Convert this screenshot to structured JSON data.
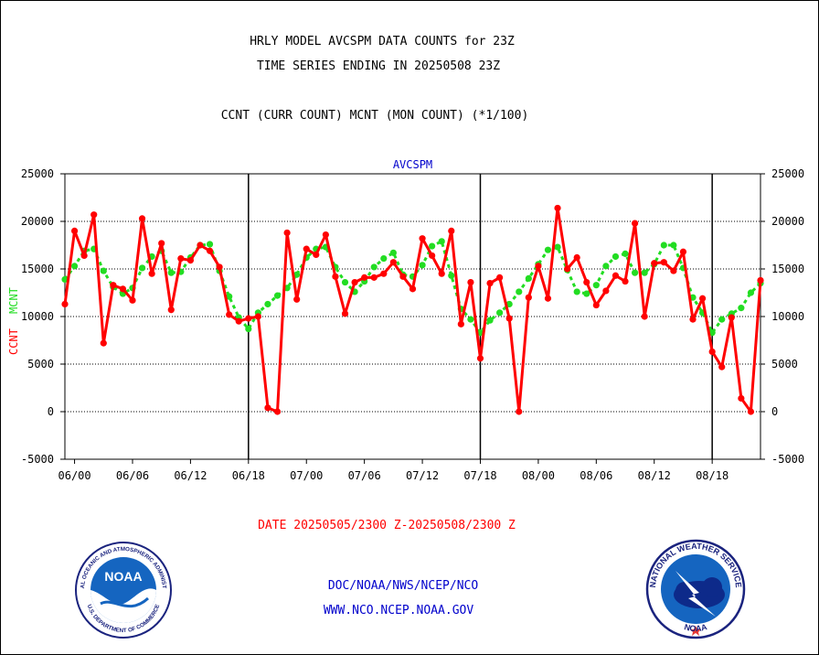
{
  "header": {
    "title_line1": "HRLY MODEL AVCSPM DATA COUNTS for 23Z",
    "title_line2": "TIME SERIES ENDING IN 20250508 23Z",
    "subtitle": "CCNT (CURR COUNT) MCNT (MON COUNT) (*1/100)"
  },
  "chart_data": {
    "type": "line",
    "title": "AVCSPM",
    "ylabel_curr": "CCNT",
    "ylabel_mon": "MCNT",
    "xlabel": "DATE 20250505/2300 Z-20250508/2300 Z",
    "ylim": [
      -5000,
      25000
    ],
    "yticks": [
      25000,
      20000,
      15000,
      10000,
      5000,
      0,
      -5000
    ],
    "x_unit": "hours since 06/00",
    "xlim": [
      -1,
      71
    ],
    "xticks": [
      {
        "x": 0,
        "label": "06/00"
      },
      {
        "x": 6,
        "label": "06/06"
      },
      {
        "x": 12,
        "label": "06/12"
      },
      {
        "x": 18,
        "label": "06/18"
      },
      {
        "x": 24,
        "label": "07/00"
      },
      {
        "x": 30,
        "label": "07/06"
      },
      {
        "x": 36,
        "label": "07/12"
      },
      {
        "x": 42,
        "label": "07/18"
      },
      {
        "x": 48,
        "label": "08/00"
      },
      {
        "x": 54,
        "label": "08/06"
      },
      {
        "x": 60,
        "label": "08/12"
      },
      {
        "x": 66,
        "label": "08/18"
      }
    ],
    "day_separators": [
      18,
      42,
      66
    ],
    "grid": "horizontal dotted",
    "colors": {
      "curr": "#ff0000",
      "mon": "#22dd22",
      "axis_labels": "#ff0000",
      "title": "#0000cc"
    },
    "series": [
      {
        "name": "CCNT",
        "color": "#ff0000",
        "start_x": -1,
        "values": [
          11300,
          19000,
          16400,
          20700,
          7200,
          13300,
          12900,
          11700,
          20300,
          14500,
          17700,
          10700,
          16100,
          15900,
          17500,
          16900,
          15200,
          10200,
          9500,
          9800,
          10000,
          400,
          0,
          18800,
          11800,
          17100,
          16500,
          18600,
          14200,
          10300,
          13600,
          14100,
          14100,
          14500,
          15700,
          14200,
          12900,
          18200,
          16400,
          14500,
          19000,
          9200,
          13600,
          5600,
          13500,
          14100,
          9800,
          0,
          12000,
          15300,
          11900,
          21400,
          15000,
          16200,
          13600,
          11200,
          12700,
          14300,
          13700,
          19800,
          10000,
          15600,
          15700,
          14800,
          16800,
          9700,
          11900,
          6300,
          4700,
          9900,
          1400,
          0,
          13800
        ]
      },
      {
        "name": "MCNT",
        "color": "#22dd22",
        "start_x": -1,
        "values": [
          13900,
          15300,
          16900,
          17100,
          14800,
          13100,
          12400,
          13000,
          15100,
          16300,
          16900,
          14600,
          14700,
          16200,
          17500,
          17600,
          14800,
          12100,
          9900,
          8700,
          10400,
          11300,
          12200,
          13000,
          14400,
          16200,
          17100,
          17300,
          15200,
          13600,
          12600,
          13700,
          15200,
          16100,
          16700,
          14400,
          14200,
          15400,
          17400,
          17900,
          14300,
          10800,
          9700,
          8300,
          9600,
          10400,
          11300,
          12600,
          14000,
          15500,
          17000,
          17300,
          14900,
          12600,
          12400,
          13300,
          15300,
          16300,
          16600,
          14600,
          14600,
          15500,
          17500,
          17500,
          15100,
          12000,
          10400,
          8300,
          9700,
          10300,
          10900,
          12500,
          13500
        ]
      }
    ]
  },
  "footer": {
    "line1": "DOC/NOAA/NWS/NCEP/NCO",
    "line2": "WWW.NCO.NCEP.NOAA.GOV",
    "noaa_logo_text": "NOAA",
    "noaa_ring_top": "NATIONAL OCEANIC AND ATMOSPHERIC ADMINISTRATION",
    "noaa_ring_bottom": "U.S. DEPARTMENT OF COMMERCE",
    "nws_ring_top": "NATIONAL WEATHER SERVICE",
    "nws_ring_bottom": "NOAA"
  }
}
